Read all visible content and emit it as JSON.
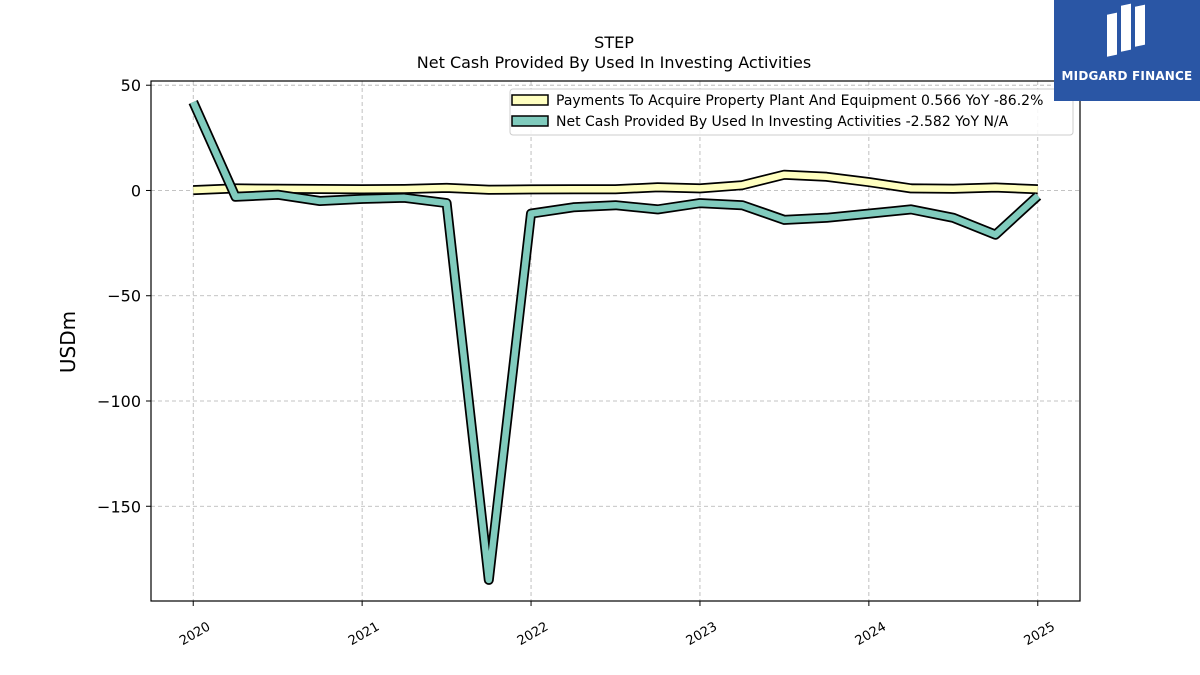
{
  "logo": {
    "text": "MIDGARD FINANCE",
    "bg_color": "#2a56a5"
  },
  "chart_data": {
    "type": "line",
    "title": "STEP",
    "subtitle": "Net Cash Provided By Used In Investing Activities",
    "ylabel": "USDm",
    "xlabel": "",
    "ylim": [
      -195,
      52
    ],
    "xlim": [
      2019.75,
      2025.25
    ],
    "yticks": [
      50,
      0,
      -50,
      -100,
      -150
    ],
    "ytick_labels": [
      "50",
      "0",
      "−50",
      "−100",
      "−150"
    ],
    "xticks": [
      2020,
      2021,
      2022,
      2023,
      2024,
      2025
    ],
    "xtick_labels": [
      "2020",
      "2021",
      "2022",
      "2023",
      "2024",
      "2025"
    ],
    "grid": true,
    "legend_position": "top-right",
    "x": [
      2020.0,
      2020.25,
      2020.5,
      2020.75,
      2021.0,
      2021.25,
      2021.5,
      2021.75,
      2022.0,
      2022.25,
      2022.5,
      2022.75,
      2023.0,
      2023.25,
      2023.5,
      2023.75,
      2024.0,
      2024.25,
      2024.5,
      2024.75,
      2025.0
    ],
    "series": [
      {
        "name": "Payments To Acquire Property Plant And Equipment  0.566 YoY -86.2%",
        "color": "#ffffc0",
        "values": [
          0.2,
          1.0,
          0.8,
          0.7,
          0.6,
          0.7,
          1.2,
          0.3,
          0.5,
          0.6,
          0.6,
          1.5,
          1.0,
          2.5,
          7.5,
          6.5,
          4.0,
          1.0,
          0.8,
          1.4,
          0.6
        ]
      },
      {
        "name": "Net Cash Provided By Used In Investing Activities  -2.582 YoY N/A",
        "color": "#80cbbd",
        "values": [
          42,
          -3,
          -2,
          -5,
          -4,
          -3.5,
          -6,
          -185,
          -11,
          -8,
          -7,
          -9,
          -6,
          -7,
          -14,
          -13,
          -11,
          -9,
          -13,
          -21,
          -2.6
        ]
      }
    ]
  }
}
